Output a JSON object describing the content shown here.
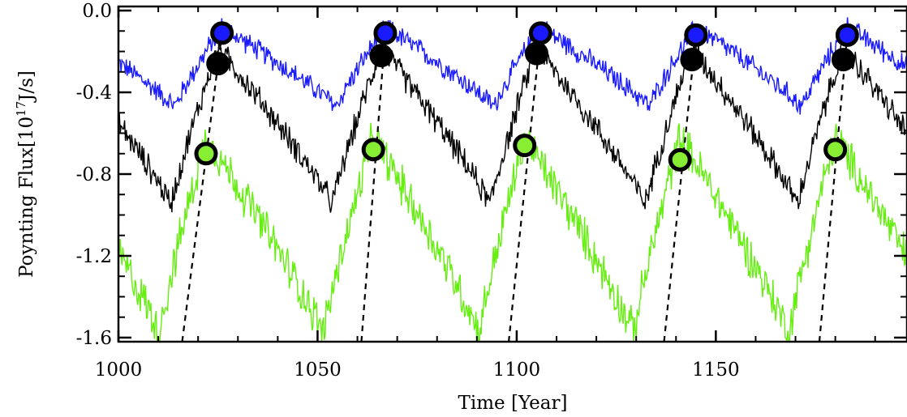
{
  "chart_data": {
    "type": "line",
    "xlabel": "Time [Year]",
    "ylabel_prefix": "Poynting Flux[10",
    "ylabel_exponent": "17",
    "ylabel_suffix": "J/s]",
    "xlim": [
      1000,
      1198
    ],
    "ylim": [
      -1.62,
      0.02
    ],
    "x_ticks": [
      1000,
      1050,
      1100,
      1150
    ],
    "x_tick_labels": [
      "1000",
      "1050",
      "1100",
      "1150"
    ],
    "y_ticks": [
      0.0,
      -0.4,
      -0.8,
      -1.2,
      -1.6
    ],
    "y_tick_labels": [
      "0.0",
      "-0.4",
      "-0.8",
      "-1.2",
      "-1.6"
    ],
    "cycle_period_years": 39.3,
    "series": [
      {
        "color": "#1a1aff",
        "baseline": -0.4,
        "peak": -0.08,
        "trough": -0.47,
        "noise": 0.045,
        "peaks": [
          [
            1026,
            -0.11
          ],
          [
            1067,
            -0.11
          ],
          [
            1106,
            -0.11
          ],
          [
            1145,
            -0.12
          ],
          [
            1183,
            -0.12
          ]
        ],
        "marker_color": "#1a1aff"
      },
      {
        "color": "#000000",
        "baseline": -0.7,
        "peak": -0.18,
        "trough": -0.95,
        "noise": 0.055,
        "peaks": [
          [
            1025,
            -0.26
          ],
          [
            1066,
            -0.22
          ],
          [
            1105,
            -0.21
          ],
          [
            1144,
            -0.24
          ],
          [
            1182,
            -0.24
          ]
        ],
        "marker_color": "#000000"
      },
      {
        "color": "#66ee11",
        "baseline": -1.1,
        "peak": -0.62,
        "trough": -1.58,
        "noise": 0.085,
        "peaks": [
          [
            1022,
            -0.7
          ],
          [
            1064,
            -0.68
          ],
          [
            1102,
            -0.66
          ],
          [
            1141,
            -0.73
          ],
          [
            1180,
            -0.68
          ]
        ],
        "marker_color": "#88ee33"
      }
    ],
    "dashed_lines": [
      [
        [
          1016,
          -1.62
        ],
        [
          1026,
          -0.11
        ]
      ],
      [
        [
          1061,
          -1.62
        ],
        [
          1067,
          -0.11
        ]
      ],
      [
        [
          1098,
          -1.62
        ],
        [
          1106,
          -0.11
        ]
      ],
      [
        [
          1137,
          -1.62
        ],
        [
          1145,
          -0.12
        ]
      ],
      [
        [
          1176,
          -1.62
        ],
        [
          1183,
          -0.12
        ]
      ]
    ]
  }
}
